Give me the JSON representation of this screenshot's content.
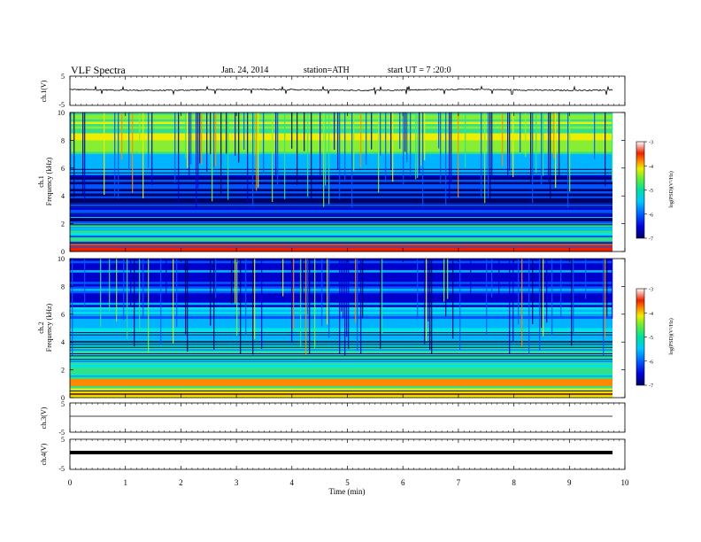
{
  "header": {
    "title": "VLF  Spectra",
    "date": "Jan. 24, 2014",
    "station": "station=ATH",
    "start": "start  UT  =   7  :20:0"
  },
  "colors": {
    "colormap": [
      "#000066",
      "#0000cc",
      "#0055ff",
      "#00b4ff",
      "#00e6e6",
      "#33e08a",
      "#88ee33",
      "#eeee00",
      "#ff8800",
      "#ee2200",
      "#ffffff"
    ]
  },
  "chart_data": [
    {
      "type": "line",
      "name": "ch1-waveform",
      "ylabel": "ch.1(V)",
      "ylim": [
        -5,
        5
      ],
      "yticks": [
        "5",
        "-5"
      ],
      "x_range_min": [
        0,
        9.83
      ],
      "baseline_v": 0.3,
      "description_values": "noisy trace near +0.3 V with short spikes to about +1.5 and -1.2 V"
    },
    {
      "type": "heatmap",
      "name": "ch1-spectrogram",
      "ylabel": "ch.1\nFrequency (kHz)",
      "ylim": [
        0,
        10
      ],
      "yticks": [
        "0",
        "2",
        "4",
        "6",
        "8",
        "10"
      ],
      "colorbar": {
        "label": "log(PSD)(V²/Hz)",
        "range": [
          -7,
          -3
        ],
        "ticks": [
          "-3",
          "-4",
          "-5",
          "-6",
          "-7"
        ]
      }
    },
    {
      "type": "heatmap",
      "name": "ch2-spectrogram",
      "ylabel": "ch.2\nFrequency (kHz)",
      "ylim": [
        0,
        10
      ],
      "yticks": [
        "0",
        "2",
        "4",
        "6",
        "8",
        "10"
      ],
      "colorbar": {
        "label": "log(PSD)(V²/Hz)",
        "range": [
          -7,
          -3
        ],
        "ticks": [
          "-3",
          "-4",
          "-5",
          "-6",
          "-7"
        ]
      }
    },
    {
      "type": "line",
      "name": "ch3-waveform",
      "ylabel": "ch.3(V)",
      "ylim": [
        -5,
        5
      ],
      "yticks": [
        "5",
        "-5"
      ],
      "baseline_v": -0.5
    },
    {
      "type": "line",
      "name": "ch4-waveform",
      "ylabel": "ch.4(V)",
      "ylim": [
        -5,
        5
      ],
      "yticks": [
        "5",
        "-5"
      ],
      "baseline_v": 0.0
    }
  ],
  "xaxis": {
    "label": "Time  (min)",
    "range": [
      0,
      10
    ],
    "ticks": [
      "0",
      "1",
      "2",
      "3",
      "4",
      "5",
      "6",
      "7",
      "8",
      "9",
      "10"
    ]
  },
  "labels": {
    "ch1": "ch.1(V)",
    "ch3": "ch.3(V)",
    "ch4": "ch.4(V)",
    "ch1_spec_a": "ch.1",
    "ch1_spec_b": "Frequency  (kHz)",
    "ch2_spec_a": "ch.2",
    "ch2_spec_b": "Frequency  (kHz)",
    "psd": "log(PSD)(V²/Hz)",
    "ytick_5": "5",
    "ytick_m5": "-5"
  }
}
